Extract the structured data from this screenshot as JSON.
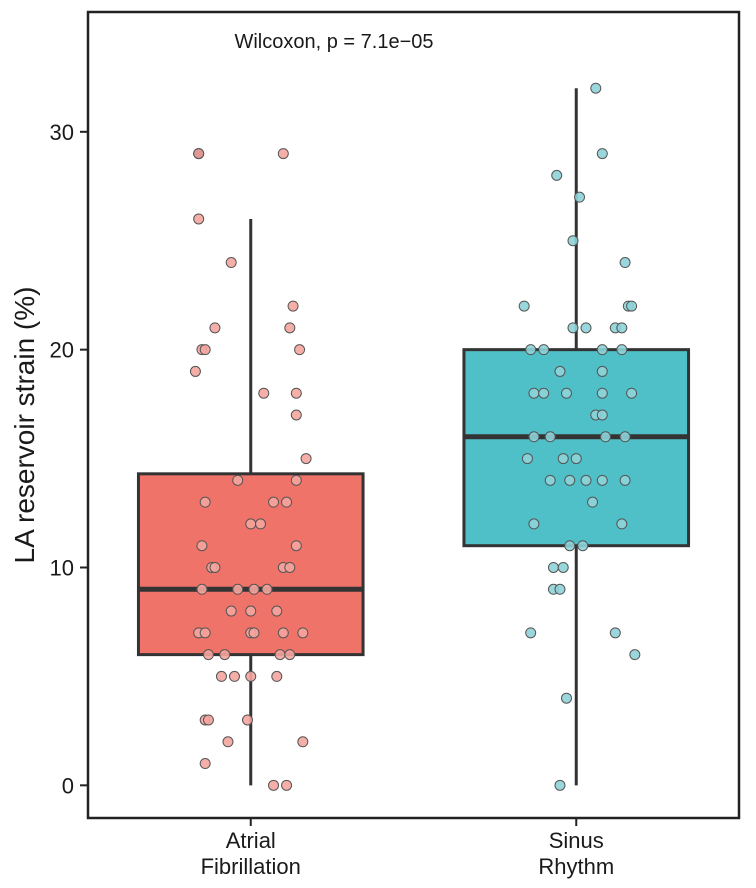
{
  "chart_data": {
    "type": "boxplot",
    "ylabel": "LA reservoir strain (%)",
    "xlabel": "",
    "annotation": "Wilcoxon, p = 7.1e−05",
    "ylim": [
      -1.5,
      35.5
    ],
    "yticks": [
      0,
      10,
      20,
      30
    ],
    "groups": [
      {
        "name_lines": [
          "Atrial",
          "Fibrillation"
        ],
        "color": "#F07369",
        "point_color": "#F4A59E",
        "box": {
          "q1": 6,
          "median": 9,
          "q3": 14.3,
          "whisker_low": 0,
          "whisker_high": 26
        },
        "outliers": [
          29
        ],
        "points": [
          [
            -0.16,
            29
          ],
          [
            0.1,
            29
          ],
          [
            -0.16,
            26
          ],
          [
            -0.06,
            24
          ],
          [
            0.13,
            22
          ],
          [
            -0.11,
            21
          ],
          [
            0.12,
            21
          ],
          [
            -0.15,
            20
          ],
          [
            -0.14,
            20
          ],
          [
            0.15,
            20
          ],
          [
            -0.17,
            19
          ],
          [
            0.04,
            18
          ],
          [
            0.14,
            18
          ],
          [
            0.14,
            17
          ],
          [
            0.17,
            15
          ],
          [
            -0.04,
            14
          ],
          [
            0.14,
            14
          ],
          [
            -0.14,
            13
          ],
          [
            0.07,
            13
          ],
          [
            0.11,
            13
          ],
          [
            0.0,
            12
          ],
          [
            0.03,
            12
          ],
          [
            -0.15,
            11
          ],
          [
            0.14,
            11
          ],
          [
            -0.12,
            10
          ],
          [
            -0.11,
            10
          ],
          [
            0.1,
            10
          ],
          [
            0.12,
            10
          ],
          [
            -0.15,
            9
          ],
          [
            -0.04,
            9
          ],
          [
            0.01,
            9
          ],
          [
            0.05,
            9
          ],
          [
            -0.06,
            8
          ],
          [
            0.0,
            8
          ],
          [
            0.08,
            8
          ],
          [
            -0.16,
            7
          ],
          [
            -0.14,
            7
          ],
          [
            0.0,
            7
          ],
          [
            0.01,
            7
          ],
          [
            0.1,
            7
          ],
          [
            0.16,
            7
          ],
          [
            -0.13,
            6
          ],
          [
            -0.08,
            6
          ],
          [
            0.09,
            6
          ],
          [
            0.12,
            6
          ],
          [
            -0.09,
            5
          ],
          [
            -0.05,
            5
          ],
          [
            0.0,
            5
          ],
          [
            0.08,
            5
          ],
          [
            -0.14,
            3
          ],
          [
            -0.13,
            3
          ],
          [
            -0.01,
            3
          ],
          [
            -0.07,
            2
          ],
          [
            0.16,
            2
          ],
          [
            -0.14,
            1
          ],
          [
            0.07,
            0
          ],
          [
            0.11,
            0
          ]
        ]
      },
      {
        "name_lines": [
          "Sinus",
          "Rhythm"
        ],
        "color": "#4FC0C7",
        "point_color": "#8ED3D8",
        "box": {
          "q1": 11,
          "median": 16,
          "q3": 20,
          "whisker_low": 0,
          "whisker_high": 32
        },
        "outliers": [],
        "points": [
          [
            0.06,
            32
          ],
          [
            0.08,
            29
          ],
          [
            -0.06,
            28
          ],
          [
            0.01,
            27
          ],
          [
            -0.01,
            25
          ],
          [
            0.15,
            24
          ],
          [
            -0.16,
            22
          ],
          [
            0.16,
            22
          ],
          [
            0.17,
            22
          ],
          [
            -0.01,
            21
          ],
          [
            0.03,
            21
          ],
          [
            0.12,
            21
          ],
          [
            0.14,
            21
          ],
          [
            -0.14,
            20
          ],
          [
            -0.1,
            20
          ],
          [
            0.08,
            20
          ],
          [
            0.14,
            20
          ],
          [
            -0.05,
            19
          ],
          [
            0.08,
            19
          ],
          [
            -0.13,
            18
          ],
          [
            -0.1,
            18
          ],
          [
            -0.03,
            18
          ],
          [
            0.08,
            18
          ],
          [
            0.17,
            18
          ],
          [
            0.06,
            17
          ],
          [
            0.08,
            17
          ],
          [
            -0.13,
            16
          ],
          [
            -0.08,
            16
          ],
          [
            0.09,
            16
          ],
          [
            0.15,
            16
          ],
          [
            -0.15,
            15
          ],
          [
            -0.04,
            15
          ],
          [
            0.0,
            15
          ],
          [
            -0.08,
            14
          ],
          [
            -0.02,
            14
          ],
          [
            0.03,
            14
          ],
          [
            0.08,
            14
          ],
          [
            0.15,
            14
          ],
          [
            0.05,
            13
          ],
          [
            -0.13,
            12
          ],
          [
            0.14,
            12
          ],
          [
            -0.02,
            11
          ],
          [
            0.02,
            11
          ],
          [
            -0.07,
            10
          ],
          [
            -0.04,
            10
          ],
          [
            -0.07,
            9
          ],
          [
            -0.05,
            9
          ],
          [
            0.12,
            7
          ],
          [
            -0.14,
            7
          ],
          [
            0.18,
            6
          ],
          [
            -0.03,
            4
          ],
          [
            -0.05,
            0
          ]
        ]
      }
    ]
  }
}
